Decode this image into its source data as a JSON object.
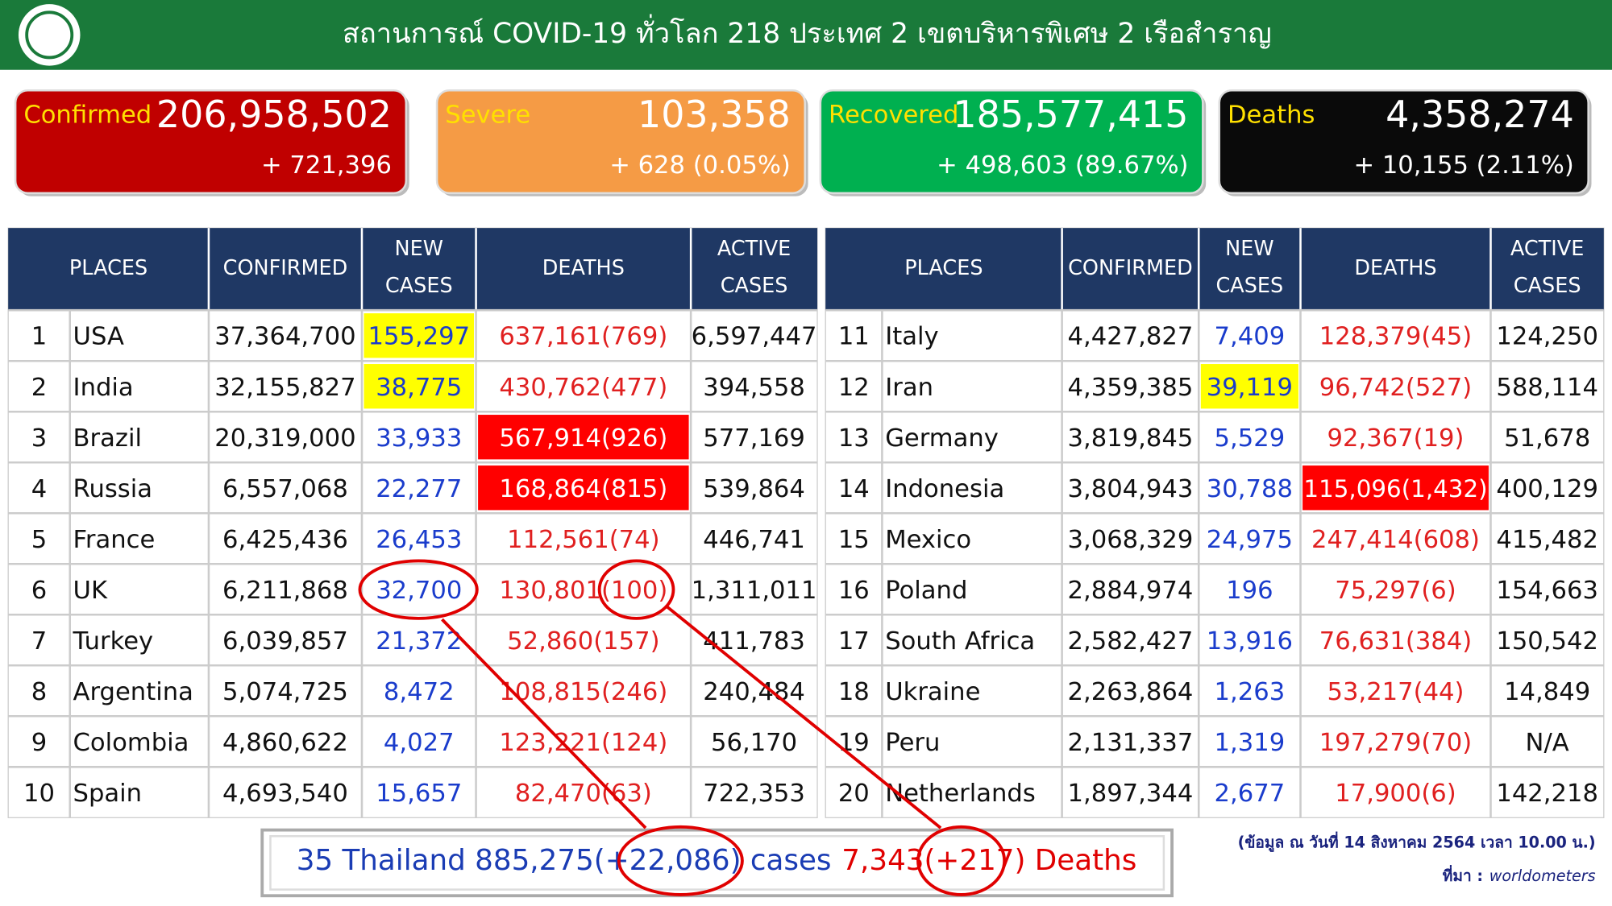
{
  "header": {
    "title": "สถานการณ์ COVID-19 ทั่วโลก 218 ประเทศ 2 เขตบริหารพิเศษ 2 เรือสำราญ"
  },
  "summary": [
    {
      "label": "Confirmed",
      "total": "206,958,502",
      "change": "+ 721,396",
      "color": "#c00000"
    },
    {
      "label": "Severe",
      "total": "103,358",
      "change": "+ 628 (0.05%)",
      "color": "#f59b45"
    },
    {
      "label": "Recovered",
      "total": "185,577,415",
      "change": "+ 498,603 (89.67%)",
      "color": "#00b050"
    },
    {
      "label": "Deaths",
      "total": "4,358,274",
      "change": "+ 10,155 (2.11%)",
      "color": "#0a0a0a"
    }
  ],
  "tables": [
    {
      "headers": [
        [
          "PLACES"
        ],
        [
          "CONFIRMED"
        ],
        [
          "NEW",
          "CASES"
        ],
        [
          "DEATHS"
        ],
        [
          "ACTIVE",
          "CASES"
        ]
      ],
      "rows": [
        {
          "cells": [
            "1",
            "USA",
            "37,364,700",
            "155,297",
            "637,161(769)",
            "6,597,447"
          ],
          "new_fill": "#ffff00"
        },
        {
          "cells": [
            "2",
            "India",
            "32,155,827",
            "38,775",
            "430,762(477)",
            "394,558"
          ],
          "new_fill": "#ffff00"
        },
        {
          "cells": [
            "3",
            "Brazil",
            "20,319,000",
            "33,933",
            "567,914(926)",
            "577,169"
          ],
          "deaths_fill": "#ff0000"
        },
        {
          "cells": [
            "4",
            "Russia",
            "6,557,068",
            "22,277",
            "168,864(815)",
            "539,864"
          ],
          "deaths_fill": "#ff0000"
        },
        {
          "cells": [
            "5",
            "France",
            "6,425,436",
            "26,453",
            "112,561(74)",
            "446,741"
          ]
        },
        {
          "cells": [
            "6",
            "UK",
            "6,211,868",
            "32,700",
            "130,801(100)",
            "1,311,011"
          ]
        },
        {
          "cells": [
            "7",
            "Turkey",
            "6,039,857",
            "21,372",
            "52,860(157)",
            "411,783"
          ]
        },
        {
          "cells": [
            "8",
            "Argentina",
            "5,074,725",
            "8,472",
            "108,815(246)",
            "240,484"
          ]
        },
        {
          "cells": [
            "9",
            "Colombia",
            "4,860,622",
            "4,027",
            "123,221(124)",
            "56,170"
          ]
        },
        {
          "cells": [
            "10",
            "Spain",
            "4,693,540",
            "15,657",
            "82,470(63)",
            "722,353"
          ]
        }
      ]
    },
    {
      "headers": [
        [
          "PLACES"
        ],
        [
          "CONFIRMED"
        ],
        [
          "NEW",
          "CASES"
        ],
        [
          "DEATHS"
        ],
        [
          "ACTIVE",
          "CASES"
        ]
      ],
      "rows": [
        {
          "cells": [
            "11",
            "Italy",
            "4,427,827",
            "7,409",
            "128,379(45)",
            "124,250"
          ]
        },
        {
          "cells": [
            "12",
            "Iran",
            "4,359,385",
            "39,119",
            "96,742(527)",
            "588,114"
          ],
          "new_fill": "#ffff00"
        },
        {
          "cells": [
            "13",
            "Germany",
            "3,819,845",
            "5,529",
            "92,367(19)",
            "51,678"
          ]
        },
        {
          "cells": [
            "14",
            "Indonesia",
            "3,804,943",
            "30,788",
            "115,096(1,432)",
            "400,129"
          ],
          "deaths_fill": "#ff0000"
        },
        {
          "cells": [
            "15",
            "Mexico",
            "3,068,329",
            "24,975",
            "247,414(608)",
            "415,482"
          ]
        },
        {
          "cells": [
            "16",
            "Poland",
            "2,884,974",
            "196",
            "75,297(6)",
            "154,663"
          ]
        },
        {
          "cells": [
            "17",
            "South Africa",
            "2,582,427",
            "13,916",
            "76,631(384)",
            "150,542"
          ]
        },
        {
          "cells": [
            "18",
            "Ukraine",
            "2,263,864",
            "1,263",
            "53,217(44)",
            "14,849"
          ]
        },
        {
          "cells": [
            "19",
            "Peru",
            "2,131,337",
            "1,319",
            "197,279(70)",
            "N/A"
          ]
        },
        {
          "cells": [
            "20",
            "Netherlands",
            "1,897,344",
            "2,677",
            "17,900(6)",
            "142,218"
          ]
        }
      ]
    }
  ],
  "footer": {
    "parts": [
      {
        "text": "35 Thailand 885,275(+22,086) cases",
        "color": "#1a3cb4"
      },
      {
        "text": "7,343(+217) Deaths",
        "color": "#e00000"
      }
    ]
  },
  "note": {
    "date": "(ข้อมูล ณ วันที่ 14 สิงหาคม 2564 เวลา 10.00 น.)",
    "source_label": "ที่มา :",
    "source": "worldometers"
  }
}
